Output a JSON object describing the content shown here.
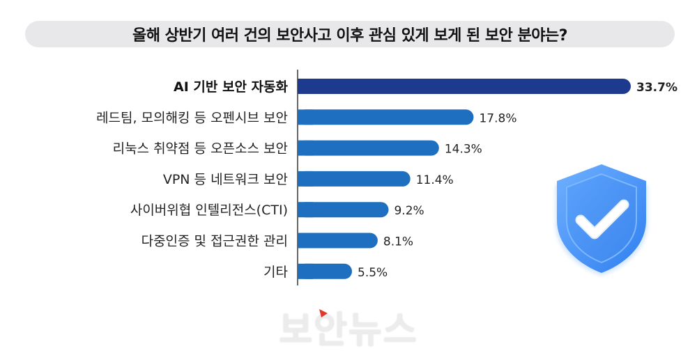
{
  "title": "올해 상반기 여러 건의 보안사고 이후 관심 있게 보게 된 보안 분야는?",
  "chart_data": {
    "type": "bar",
    "orientation": "horizontal",
    "categories": [
      "AI 기반 보안 자동화",
      "레드팀, 모의해킹 등 오펜시브 보안",
      "리눅스 취약점 등 오픈소스 보안",
      "VPN 등 네트워크 보안",
      "사이버위협 인텔리전스(CTI)",
      "다중인증 및 접근권한 관리",
      "기타"
    ],
    "values": [
      33.7,
      17.8,
      14.3,
      11.4,
      9.2,
      8.1,
      5.5
    ],
    "value_labels": [
      "33.7%",
      "17.8%",
      "14.3%",
      "11.4%",
      "9.2%",
      "8.1%",
      "5.5%"
    ],
    "unit": "%",
    "colors": {
      "highlight": "#1d3a8f",
      "default": "#1f6fc0"
    },
    "grid": false,
    "legend": "none"
  },
  "decorations": {
    "shield_icon": "shield-check-icon",
    "watermark": "보안뉴스",
    "watermark_color": "#ececec",
    "watermark_accent": "#e0382b"
  }
}
